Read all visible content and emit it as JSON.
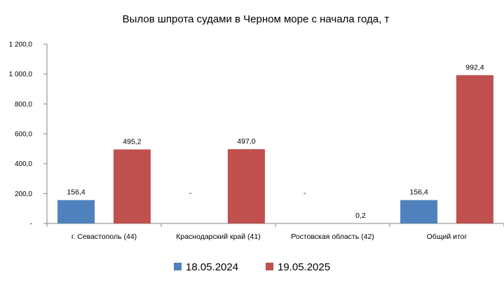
{
  "chart_data": {
    "type": "bar",
    "title": "Вылов шпрота судами в Черном море с начала  года, т",
    "categories": [
      "г. Севастополь (44)",
      "Краснодарский край (41)",
      "Ростовская область (42)",
      "Общий итог"
    ],
    "series": [
      {
        "name": "18.05.2024",
        "color": "#4f81bd",
        "values": [
          156.4,
          null,
          null,
          156.4
        ],
        "labels": [
          "156,4",
          "-",
          "-",
          "156,4"
        ]
      },
      {
        "name": "19.05.2025",
        "color": "#c0504d",
        "values": [
          495.2,
          497.0,
          0.2,
          992.4
        ],
        "labels": [
          "495,2",
          "497,0",
          "0,2",
          "992,4"
        ]
      }
    ],
    "ylim": [
      0,
      1200
    ],
    "yticks": [
      0,
      200,
      400,
      600,
      800,
      1000,
      1200
    ],
    "ytick_labels": [
      "-",
      "200,0",
      "400,0",
      "600,0",
      "800,0",
      "1 000,0",
      "1 200,0"
    ],
    "grid": false,
    "legend_position": "bottom"
  }
}
